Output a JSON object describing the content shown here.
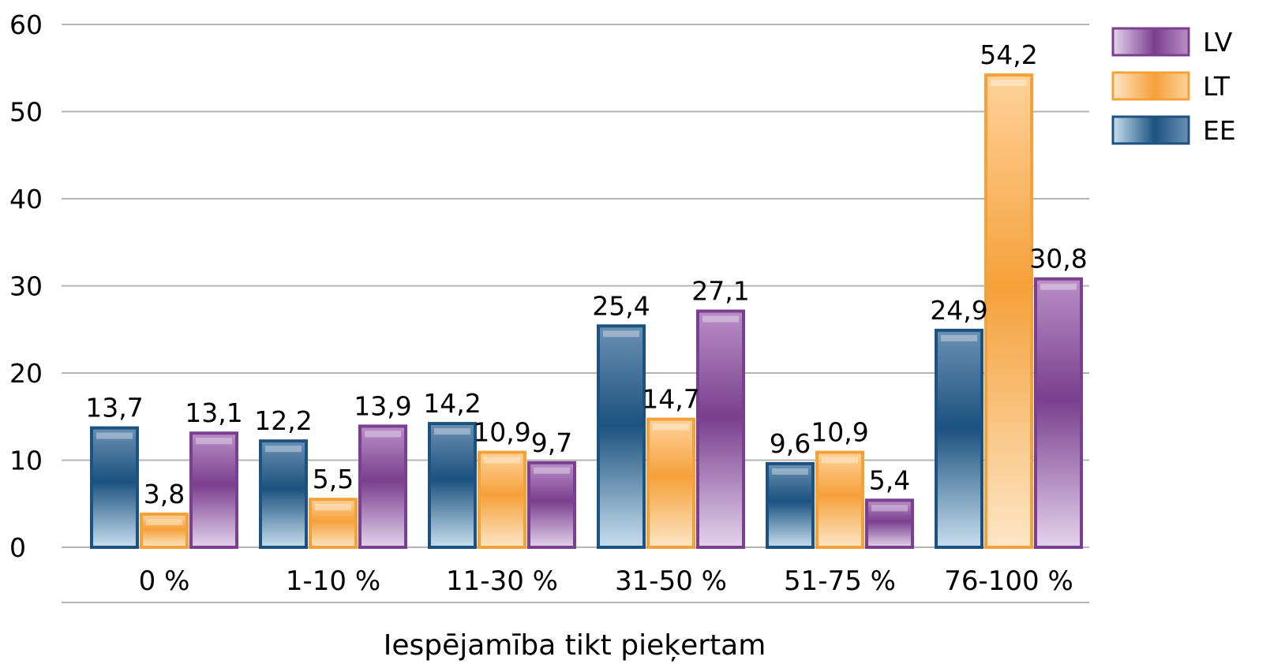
{
  "chart_data": {
    "type": "bar",
    "title": "",
    "xlabel": "Iespējamība tikt pieķertam",
    "ylabel": "",
    "ylim": [
      0,
      60
    ],
    "yticks": [
      0,
      10,
      20,
      30,
      40,
      50,
      60
    ],
    "grid": true,
    "legend_position": "top-right",
    "categories": [
      "0 %",
      "1-10 %",
      "11-30 %",
      "31-50 %",
      "51-75 %",
      "76-100 %"
    ],
    "series": [
      {
        "name": "EE",
        "color": "#1b527f",
        "values": [
          13.7,
          12.2,
          14.2,
          25.4,
          9.6,
          24.9
        ],
        "labels": [
          "13,7",
          "12,2",
          "14,2",
          "25,4",
          "9,6",
          "24,9"
        ]
      },
      {
        "name": "LT",
        "color": "#f5a13a",
        "values": [
          3.8,
          5.5,
          10.9,
          14.7,
          10.9,
          54.2
        ],
        "labels": [
          "3,8",
          "5,5",
          "10,9",
          "14,7",
          "10,9",
          "54,2"
        ]
      },
      {
        "name": "LV",
        "color": "#7a3f8f",
        "values": [
          13.1,
          13.9,
          9.7,
          27.1,
          5.4,
          30.8
        ],
        "labels": [
          "13,1",
          "13,9",
          "9,7",
          "27,1",
          "5,4",
          "30,8"
        ]
      }
    ],
    "legend_order": [
      "LV",
      "LT",
      "EE"
    ]
  }
}
